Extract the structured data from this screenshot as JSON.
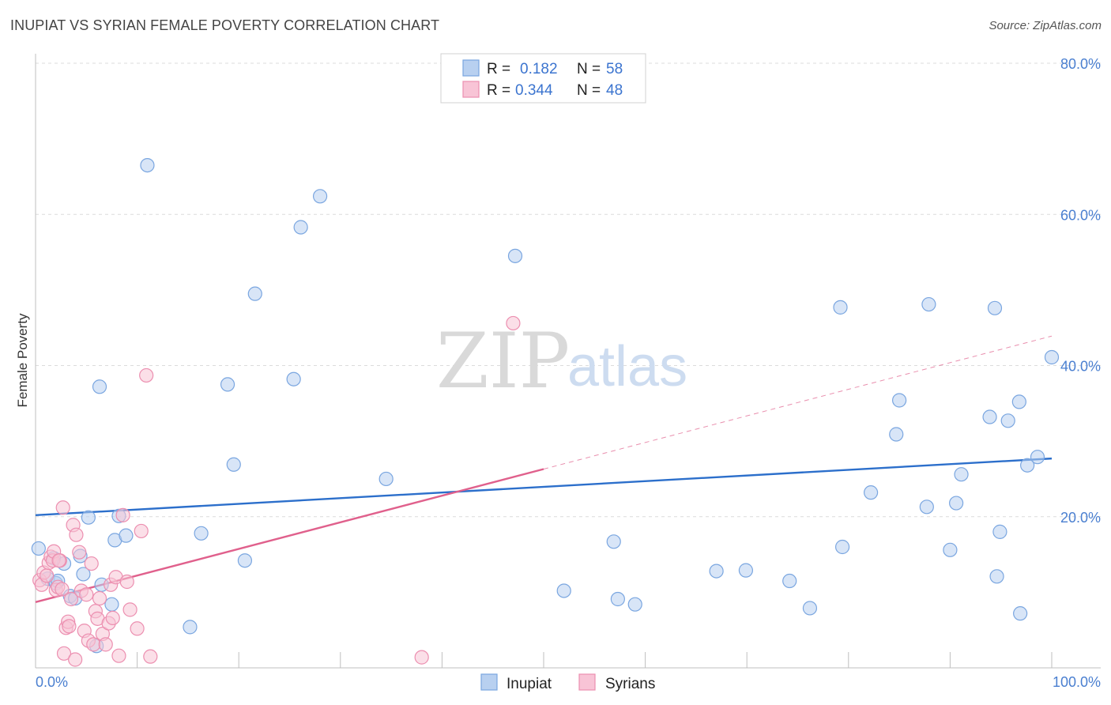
{
  "header": {
    "title": "INUPIAT VS SYRIAN FEMALE POVERTY CORRELATION CHART",
    "source": "Source: ZipAtlas.com"
  },
  "watermark": {
    "zip": "ZIP",
    "atlas": "atlas"
  },
  "chart_data": {
    "type": "scatter",
    "ylabel": "Female Poverty",
    "xlim": [
      0,
      100
    ],
    "ylim": [
      0,
      80
    ],
    "x_ticks": [
      {
        "value": 0,
        "label": "0.0%"
      },
      {
        "value": 100,
        "label": "100.0%"
      }
    ],
    "y_ticks": [
      {
        "value": 20,
        "label": "20.0%"
      },
      {
        "value": 40,
        "label": "40.0%"
      },
      {
        "value": 60,
        "label": "60.0%"
      },
      {
        "value": 80,
        "label": "80.0%"
      }
    ],
    "grid": true,
    "legend_top": [
      {
        "series": "Inupiat",
        "r_label": "R =",
        "r_value": "0.182",
        "n_label": "N =",
        "n_value": "58"
      },
      {
        "series": "Syrians",
        "r_label": "R =",
        "r_value": "0.344",
        "n_label": "N =",
        "n_value": "48"
      }
    ],
    "series": [
      {
        "name": "Inupiat",
        "color": "#7aa6e0",
        "fill": "#b8d0f0",
        "line_color": "#2c6fcb",
        "trend": {
          "x0": 0,
          "y0": 20.2,
          "x1": 100,
          "y1": 27.7
        },
        "points": [
          [
            0.3,
            15.8
          ],
          [
            1.2,
            11.8
          ],
          [
            1.8,
            14.5
          ],
          [
            2.0,
            11.2
          ],
          [
            2.2,
            11.5
          ],
          [
            2.8,
            13.8
          ],
          [
            3.4,
            9.5
          ],
          [
            3.9,
            9.2
          ],
          [
            4.4,
            14.8
          ],
          [
            4.7,
            12.4
          ],
          [
            5.2,
            19.9
          ],
          [
            6.0,
            2.9
          ],
          [
            6.3,
            37.2
          ],
          [
            6.5,
            11.0
          ],
          [
            7.5,
            8.4
          ],
          [
            7.8,
            16.9
          ],
          [
            8.2,
            20.1
          ],
          [
            8.9,
            17.5
          ],
          [
            11.0,
            66.5
          ],
          [
            15.2,
            5.4
          ],
          [
            16.3,
            17.8
          ],
          [
            18.9,
            37.5
          ],
          [
            19.5,
            26.9
          ],
          [
            20.6,
            14.2
          ],
          [
            21.6,
            49.5
          ],
          [
            25.4,
            38.2
          ],
          [
            26.1,
            58.3
          ],
          [
            28.0,
            62.4
          ],
          [
            34.5,
            25.0
          ],
          [
            47.2,
            54.5
          ],
          [
            52.0,
            10.2
          ],
          [
            56.9,
            16.7
          ],
          [
            57.3,
            9.1
          ],
          [
            59.0,
            8.4
          ],
          [
            67.0,
            12.8
          ],
          [
            69.9,
            12.9
          ],
          [
            74.2,
            11.5
          ],
          [
            76.2,
            7.9
          ],
          [
            79.2,
            47.7
          ],
          [
            79.4,
            16.0
          ],
          [
            82.2,
            23.2
          ],
          [
            84.7,
            30.9
          ],
          [
            85.0,
            35.4
          ],
          [
            87.7,
            21.3
          ],
          [
            87.9,
            48.1
          ],
          [
            90.0,
            15.6
          ],
          [
            90.6,
            21.8
          ],
          [
            91.1,
            25.6
          ],
          [
            93.9,
            33.2
          ],
          [
            94.4,
            47.6
          ],
          [
            94.6,
            12.1
          ],
          [
            94.9,
            18.0
          ],
          [
            95.7,
            32.7
          ],
          [
            96.9,
            7.2
          ],
          [
            96.8,
            35.2
          ],
          [
            97.6,
            26.8
          ],
          [
            98.6,
            27.9
          ],
          [
            100.0,
            41.1
          ]
        ]
      },
      {
        "name": "Syrians",
        "color": "#ec8fb0",
        "fill": "#f8c4d6",
        "line_color": "#e0608c",
        "trend": {
          "x0": 0,
          "y0": 8.7,
          "x1": 50,
          "y1": 26.3
        },
        "trend_ext": {
          "x0": 50,
          "y0": 26.3,
          "x1": 100,
          "y1": 43.9
        },
        "points": [
          [
            0.4,
            11.6
          ],
          [
            0.6,
            11.0
          ],
          [
            0.8,
            12.6
          ],
          [
            1.1,
            12.2
          ],
          [
            1.3,
            13.9
          ],
          [
            1.5,
            14.7
          ],
          [
            1.7,
            14.2
          ],
          [
            1.8,
            15.4
          ],
          [
            2.0,
            10.3
          ],
          [
            2.2,
            10.7
          ],
          [
            2.4,
            14.2
          ],
          [
            2.6,
            10.4
          ],
          [
            2.7,
            21.2
          ],
          [
            2.8,
            1.9
          ],
          [
            3.0,
            5.3
          ],
          [
            3.2,
            6.1
          ],
          [
            3.3,
            5.5
          ],
          [
            3.5,
            9.1
          ],
          [
            3.7,
            18.9
          ],
          [
            3.9,
            1.1
          ],
          [
            4.0,
            17.6
          ],
          [
            4.3,
            15.3
          ],
          [
            4.5,
            10.2
          ],
          [
            4.8,
            4.9
          ],
          [
            5.0,
            9.7
          ],
          [
            5.2,
            3.6
          ],
          [
            5.5,
            13.8
          ],
          [
            5.7,
            3.1
          ],
          [
            5.9,
            7.5
          ],
          [
            6.1,
            6.5
          ],
          [
            6.3,
            9.2
          ],
          [
            6.6,
            4.5
          ],
          [
            6.9,
            3.1
          ],
          [
            7.2,
            5.9
          ],
          [
            7.4,
            11.0
          ],
          [
            7.6,
            6.6
          ],
          [
            7.9,
            12.0
          ],
          [
            8.2,
            1.6
          ],
          [
            8.6,
            20.2
          ],
          [
            9.0,
            11.4
          ],
          [
            9.3,
            7.7
          ],
          [
            10.0,
            5.2
          ],
          [
            10.4,
            18.1
          ],
          [
            10.9,
            38.7
          ],
          [
            11.3,
            1.5
          ],
          [
            47.0,
            45.6
          ],
          [
            38.0,
            1.4
          ],
          [
            2.3,
            14.2
          ]
        ]
      }
    ]
  },
  "legend_bottom": [
    {
      "label": "Inupiat",
      "color": "#b8d0f0",
      "border": "#7aa6e0"
    },
    {
      "label": "Syrians",
      "color": "#f8c4d6",
      "border": "#ec8fb0"
    }
  ]
}
